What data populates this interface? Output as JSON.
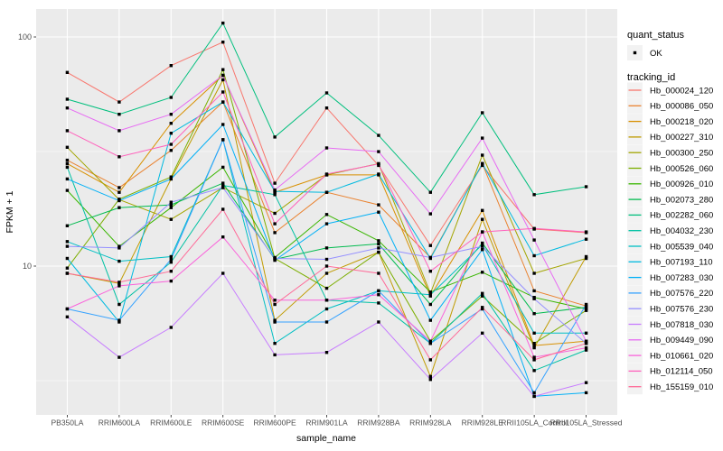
{
  "chart_data": {
    "type": "line",
    "title": "",
    "xlabel": "sample_name",
    "ylabel": "FPKM + 1",
    "y_scale": "log10",
    "y_ticks": [
      100,
      10
    ],
    "y_tick_labels": [
      "100",
      "10"
    ],
    "y_minor_ticks": [
      31.62,
      3.162
    ],
    "ylim": [
      2.2,
      132
    ],
    "grid": true,
    "legend_position": "right",
    "panel_bg": "#EBEBEB",
    "grid_color": "#FFFFFF",
    "point_color": "#000000",
    "axis_text_color": "#4D4D4D",
    "categories": [
      "PB350LA",
      "RRIM600LA",
      "RRIM600LE",
      "RRIM600SE",
      "RRIM600PE",
      "RRIM901LA",
      "RRIM928BA",
      "RRIM928LA",
      "RRIM928LE",
      "RRII105LA_Control",
      "RRII105LA_Stressed"
    ],
    "series": [
      {
        "name": "Hb_000024_120",
        "color": "#F8766D",
        "values": [
          70,
          52,
          75,
          95,
          23,
          49,
          27.5,
          12.3,
          27.5,
          14.5,
          14.0
        ]
      },
      {
        "name": "Hb_000086_050",
        "color": "#EA8331",
        "values": [
          29,
          22,
          32,
          52,
          14,
          21,
          18.5,
          10.9,
          28,
          7.8,
          6.7
        ]
      },
      {
        "name": "Hb_000218_020",
        "color": "#D89000",
        "values": [
          28,
          21,
          42,
          68,
          21,
          25,
          25,
          7.4,
          17.5,
          4.5,
          4.7
        ]
      },
      {
        "name": "Hb_000227_310",
        "color": "#C09B00",
        "values": [
          9.3,
          8.4,
          24,
          65,
          5.8,
          9.3,
          11.5,
          3.3,
          16,
          4.4,
          11.0
        ]
      },
      {
        "name": "Hb_000300_250",
        "color": "#A3A500",
        "values": [
          33,
          19.5,
          16,
          22,
          17,
          25,
          28,
          7.6,
          30.5,
          9.3,
          10.8
        ]
      },
      {
        "name": "Hb_000526_060",
        "color": "#7CAE00",
        "values": [
          9.8,
          19.6,
          24.5,
          72,
          10.8,
          8.0,
          11.5,
          4.7,
          7.4,
          4.6,
          6.4
        ]
      },
      {
        "name": "Hb_000926_010",
        "color": "#39B600",
        "values": [
          21.4,
          12.2,
          18,
          27,
          10.9,
          16.8,
          12.9,
          7.7,
          9.4,
          7.3,
          6.5
        ]
      },
      {
        "name": "Hb_002073_280",
        "color": "#00BB4E",
        "values": [
          15,
          18,
          18.5,
          23,
          10.7,
          12,
          12.5,
          6.8,
          12.6,
          6.2,
          6.6
        ]
      },
      {
        "name": "Hb_002282_060",
        "color": "#00BF7D",
        "values": [
          53.5,
          46,
          54.5,
          115,
          36.6,
          57,
          37.2,
          21,
          46.7,
          20.5,
          22.2
        ]
      },
      {
        "name": "Hb_004032_230",
        "color": "#00C1A3",
        "values": [
          27,
          6.8,
          10.4,
          22.5,
          20.5,
          7.1,
          6.9,
          4.6,
          7.6,
          3.5,
          4.3
        ]
      },
      {
        "name": "Hb_005539_040",
        "color": "#00BFC4",
        "values": [
          12.8,
          10.5,
          11,
          35.6,
          4.6,
          6.5,
          7.8,
          7.5,
          12.4,
          5.1,
          5.1
        ]
      },
      {
        "name": "Hb_007193_110",
        "color": "#00BAE0",
        "values": [
          10.8,
          5.7,
          38,
          52,
          21.2,
          21,
          25.2,
          10.8,
          28,
          11.1,
          13.1
        ]
      },
      {
        "name": "Hb_007283_030",
        "color": "#00B0F6",
        "values": [
          24,
          19.3,
          24,
          41.5,
          10.6,
          15.3,
          17.2,
          5.8,
          11.8,
          2.7,
          2.8
        ]
      },
      {
        "name": "Hb_007576_220",
        "color": "#35A2FF",
        "values": [
          6.5,
          5.8,
          10.7,
          35.6,
          5.7,
          5.7,
          7.8,
          4.6,
          6.5,
          2.8,
          6.8
        ]
      },
      {
        "name": "Hb_007576_230",
        "color": "#9590FF",
        "values": [
          12.2,
          12.0,
          19,
          22,
          10.8,
          10.7,
          12.0,
          10.9,
          12.2,
          7.2,
          4.6
        ]
      },
      {
        "name": "Hb_007818_030",
        "color": "#C77CFF",
        "values": [
          6.0,
          4.0,
          5.4,
          9.3,
          4.1,
          4.2,
          5.7,
          3.2,
          5.1,
          2.7,
          3.1
        ]
      },
      {
        "name": "Hb_009449_090",
        "color": "#E76BF3",
        "values": [
          49,
          39,
          46,
          68,
          21.5,
          32.8,
          31.6,
          16.9,
          36.2,
          13,
          4.7
        ]
      },
      {
        "name": "Hb_010661_020",
        "color": "#FA62DB",
        "values": [
          6.5,
          8.2,
          8.6,
          13.4,
          7.1,
          7.1,
          7.5,
          4.7,
          14.1,
          4.0,
          4.4
        ]
      },
      {
        "name": "Hb_012114_050",
        "color": "#FF62BC",
        "values": [
          39,
          30,
          34,
          57.5,
          15.3,
          25.2,
          27.9,
          9.5,
          14.1,
          14.6,
          14.1
        ]
      },
      {
        "name": "Hb_155159_010",
        "color": "#FF6A98",
        "values": [
          9.3,
          8.5,
          9.5,
          17.7,
          6.8,
          10.0,
          9.3,
          3.9,
          6.6,
          3.9,
          4.6
        ]
      }
    ]
  },
  "legend": {
    "quant_status_title": "quant_status",
    "quant_status_items": [
      {
        "label": "OK",
        "symbol": "point"
      }
    ],
    "tracking_id_title": "tracking_id",
    "key_bg": "#F2F2F2"
  }
}
